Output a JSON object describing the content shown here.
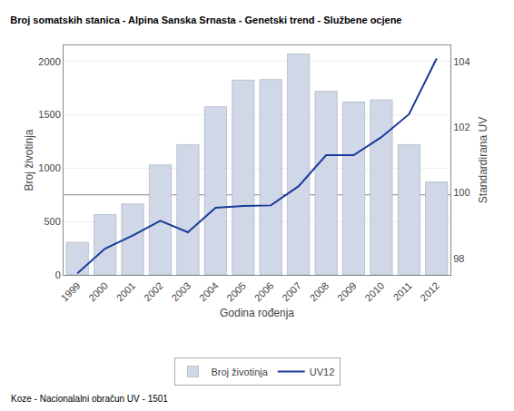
{
  "chart_data": {
    "type": "bar",
    "title": "Broj somatskih stanica - Alpina Sanska Srnasta - Genetski trend - Službene ocjene",
    "xlabel": "Godina rođenja",
    "ylabel": "Broj životinja",
    "y2label": "Standardirana UV",
    "annotations": [
      "Koze - Nacionalalni obračun UV - 1501"
    ],
    "categories": [
      1999,
      2000,
      2001,
      2002,
      2003,
      2004,
      2005,
      2006,
      2007,
      2008,
      2009,
      2010,
      2011,
      2012
    ],
    "series": [
      {
        "name": "Broj životinja",
        "type": "bar",
        "color": "#d0d8e8",
        "values": [
          305,
          565,
          665,
          1030,
          1220,
          1575,
          1825,
          1830,
          2070,
          1720,
          1620,
          1640,
          1220,
          870
        ]
      },
      {
        "name": "UV12",
        "type": "line",
        "color": "#1a3a9a",
        "axis": "y2",
        "values": [
          97.55,
          98.3,
          98.7,
          99.15,
          98.8,
          99.55,
          99.6,
          99.62,
          100.2,
          101.15,
          101.15,
          101.7,
          102.4,
          104.1
        ]
      }
    ],
    "hline": 750,
    "ylim": [
      0,
      2150
    ],
    "yticks": [
      0,
      500,
      1000,
      1500,
      2000
    ],
    "y2lim": [
      97.5,
      104.5
    ],
    "y2ticks": [
      98,
      100,
      102,
      104
    ],
    "grid": true,
    "legend": "bottom"
  }
}
